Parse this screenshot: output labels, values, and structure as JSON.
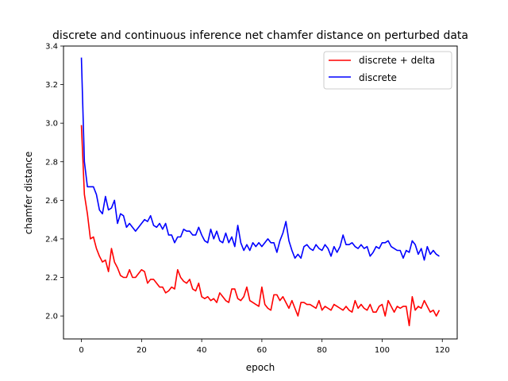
{
  "chart_data": {
    "type": "line",
    "title": "discrete and continuous inference net chamfer distance on perturbed data",
    "xlabel": "epoch",
    "ylabel": "chamfer distance",
    "xlim": [
      -5.95,
      124.95
    ],
    "ylim": [
      1.881,
      3.4
    ],
    "xticks": [
      0,
      20,
      40,
      60,
      80,
      100,
      120
    ],
    "yticks": [
      2.0,
      2.2,
      2.4,
      2.6,
      2.8,
      3.0,
      3.2,
      3.4
    ],
    "xtick_labels": [
      "0",
      "20",
      "40",
      "60",
      "80",
      "100",
      "120"
    ],
    "ytick_labels": [
      "2.0",
      "2.2",
      "2.4",
      "2.6",
      "2.8",
      "3.0",
      "3.2",
      "3.4"
    ],
    "grid": false,
    "legend_position": "top-right",
    "series": [
      {
        "name": "discrete + delta",
        "color": "#ff0000",
        "values": [
          2.99,
          2.63,
          2.53,
          2.4,
          2.41,
          2.35,
          2.31,
          2.28,
          2.29,
          2.23,
          2.35,
          2.28,
          2.25,
          2.21,
          2.2,
          2.2,
          2.24,
          2.2,
          2.2,
          2.22,
          2.24,
          2.23,
          2.17,
          2.19,
          2.19,
          2.17,
          2.15,
          2.15,
          2.12,
          2.13,
          2.15,
          2.14,
          2.24,
          2.2,
          2.18,
          2.17,
          2.19,
          2.14,
          2.13,
          2.17,
          2.1,
          2.09,
          2.1,
          2.08,
          2.09,
          2.07,
          2.12,
          2.1,
          2.08,
          2.07,
          2.14,
          2.14,
          2.09,
          2.08,
          2.1,
          2.15,
          2.08,
          2.07,
          2.06,
          2.05,
          2.15,
          2.06,
          2.04,
          2.03,
          2.11,
          2.11,
          2.08,
          2.1,
          2.07,
          2.04,
          2.08,
          2.04,
          2.0,
          2.07,
          2.07,
          2.06,
          2.06,
          2.05,
          2.04,
          2.08,
          2.03,
          2.05,
          2.04,
          2.03,
          2.06,
          2.05,
          2.04,
          2.03,
          2.05,
          2.03,
          2.02,
          2.08,
          2.04,
          2.06,
          2.04,
          2.03,
          2.06,
          2.02,
          2.02,
          2.05,
          2.06,
          2.0,
          2.08,
          2.05,
          2.02,
          2.05,
          2.04,
          2.05,
          2.05,
          1.95,
          2.1,
          2.03,
          2.05,
          2.04,
          2.08,
          2.05,
          2.02,
          2.03,
          2.0,
          2.03
        ]
      },
      {
        "name": "discrete",
        "color": "#0000ff",
        "values": [
          3.34,
          2.8,
          2.67,
          2.67,
          2.67,
          2.63,
          2.55,
          2.53,
          2.62,
          2.55,
          2.56,
          2.6,
          2.48,
          2.53,
          2.52,
          2.46,
          2.48,
          2.46,
          2.44,
          2.46,
          2.48,
          2.5,
          2.49,
          2.52,
          2.47,
          2.46,
          2.48,
          2.45,
          2.48,
          2.42,
          2.42,
          2.38,
          2.41,
          2.41,
          2.45,
          2.44,
          2.44,
          2.42,
          2.42,
          2.46,
          2.42,
          2.39,
          2.38,
          2.45,
          2.4,
          2.44,
          2.39,
          2.38,
          2.43,
          2.38,
          2.41,
          2.36,
          2.47,
          2.38,
          2.34,
          2.37,
          2.34,
          2.38,
          2.36,
          2.38,
          2.36,
          2.38,
          2.4,
          2.38,
          2.38,
          2.33,
          2.39,
          2.43,
          2.49,
          2.39,
          2.34,
          2.3,
          2.32,
          2.3,
          2.36,
          2.37,
          2.35,
          2.34,
          2.37,
          2.35,
          2.34,
          2.37,
          2.35,
          2.31,
          2.36,
          2.33,
          2.36,
          2.42,
          2.37,
          2.37,
          2.38,
          2.36,
          2.35,
          2.37,
          2.35,
          2.36,
          2.31,
          2.33,
          2.36,
          2.35,
          2.38,
          2.38,
          2.39,
          2.36,
          2.35,
          2.34,
          2.34,
          2.3,
          2.34,
          2.33,
          2.39,
          2.37,
          2.32,
          2.35,
          2.29,
          2.36,
          2.32,
          2.34,
          2.32,
          2.31
        ]
      }
    ]
  }
}
